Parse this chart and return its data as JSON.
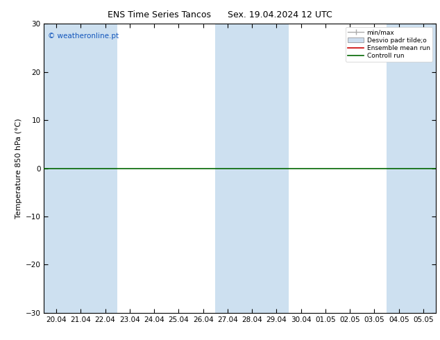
{
  "title_left": "ENS Time Series Tancos",
  "title_right": "Sex. 19.04.2024 12 UTC",
  "ylabel": "Temperature 850 hPa (°C)",
  "ylim": [
    -30,
    30
  ],
  "yticks": [
    -30,
    -20,
    -10,
    0,
    10,
    20,
    30
  ],
  "xtick_labels": [
    "20.04",
    "21.04",
    "22.04",
    "23.04",
    "24.04",
    "25.04",
    "26.04",
    "27.04",
    "28.04",
    "29.04",
    "30.04",
    "01.05",
    "02.05",
    "03.05",
    "04.05",
    "05.05"
  ],
  "shaded_indices": [
    0,
    1,
    2,
    7,
    8,
    9,
    14,
    15
  ],
  "band_color": "#cde0f0",
  "zero_line_color": "#006600",
  "watermark": "© weatheronline.pt",
  "watermark_color": "#1155bb",
  "bg_color": "#ffffff",
  "title_fontsize": 9,
  "ylabel_fontsize": 8,
  "tick_fontsize": 7.5,
  "legend_items": [
    {
      "label": "min/max",
      "type": "errorbar",
      "color": "#aaaaaa"
    },
    {
      "label": "Desvio padr tilde;o",
      "type": "box",
      "color": "#ccddee"
    },
    {
      "label": "Ensemble mean run",
      "type": "line",
      "color": "#cc0000"
    },
    {
      "label": "Controll run",
      "type": "line",
      "color": "#006600"
    }
  ]
}
